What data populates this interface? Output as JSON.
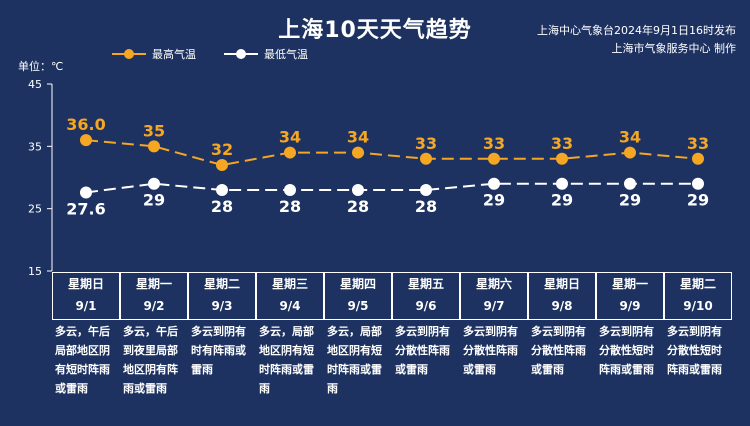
{
  "header": {
    "title": "上海10天天气趋势",
    "source_line1": "上海中心气象台2024年9月1日16时发布",
    "source_line2": "上海市气象服务中心 制作"
  },
  "unit_label": "单位：℃",
  "colors": {
    "high": "#f5a623",
    "low": "#ffffff",
    "background": "#1d3260"
  },
  "chart_data": {
    "type": "line",
    "categories": [
      "9/1",
      "9/2",
      "9/3",
      "9/4",
      "9/5",
      "9/6",
      "9/7",
      "9/8",
      "9/9",
      "9/10"
    ],
    "series": [
      {
        "name": "最高气温",
        "values": [
          36.0,
          35,
          32,
          34,
          34,
          33,
          33,
          33,
          34,
          33
        ],
        "labels": [
          "36.0",
          "35",
          "32",
          "34",
          "34",
          "33",
          "33",
          "33",
          "34",
          "33"
        ]
      },
      {
        "name": "最低气温",
        "values": [
          27.6,
          29,
          28,
          28,
          28,
          28,
          29,
          29,
          29,
          29
        ],
        "labels": [
          "27.6",
          "29",
          "28",
          "28",
          "28",
          "28",
          "29",
          "29",
          "29",
          "29"
        ]
      }
    ],
    "yticks": [
      15,
      25,
      35,
      45
    ],
    "ylim": [
      15,
      45
    ],
    "grid": false,
    "legend_position": "top-left"
  },
  "days": [
    {
      "weekday": "星期日",
      "date": "9/1",
      "weather": "多云，午后局部地区阴有短时阵雨或雷雨"
    },
    {
      "weekday": "星期一",
      "date": "9/2",
      "weather": "多云，午后到夜里局部地区阴有阵雨或雷雨"
    },
    {
      "weekday": "星期二",
      "date": "9/3",
      "weather": "多云到阴有时有阵雨或雷雨"
    },
    {
      "weekday": "星期三",
      "date": "9/4",
      "weather": "多云，局部地区阴有短时阵雨或雷雨"
    },
    {
      "weekday": "星期四",
      "date": "9/5",
      "weather": "多云，局部地区阴有短时阵雨或雷雨"
    },
    {
      "weekday": "星期五",
      "date": "9/6",
      "weather": "多云到阴有分散性阵雨或雷雨"
    },
    {
      "weekday": "星期六",
      "date": "9/7",
      "weather": "多云到阴有分散性阵雨或雷雨"
    },
    {
      "weekday": "星期日",
      "date": "9/8",
      "weather": "多云到阴有分散性阵雨或雷雨"
    },
    {
      "weekday": "星期一",
      "date": "9/9",
      "weather": "多云到阴有分散性短时阵雨或雷雨"
    },
    {
      "weekday": "星期二",
      "date": "9/10",
      "weather": "多云到阴有分散性短时阵雨或雷雨"
    }
  ]
}
